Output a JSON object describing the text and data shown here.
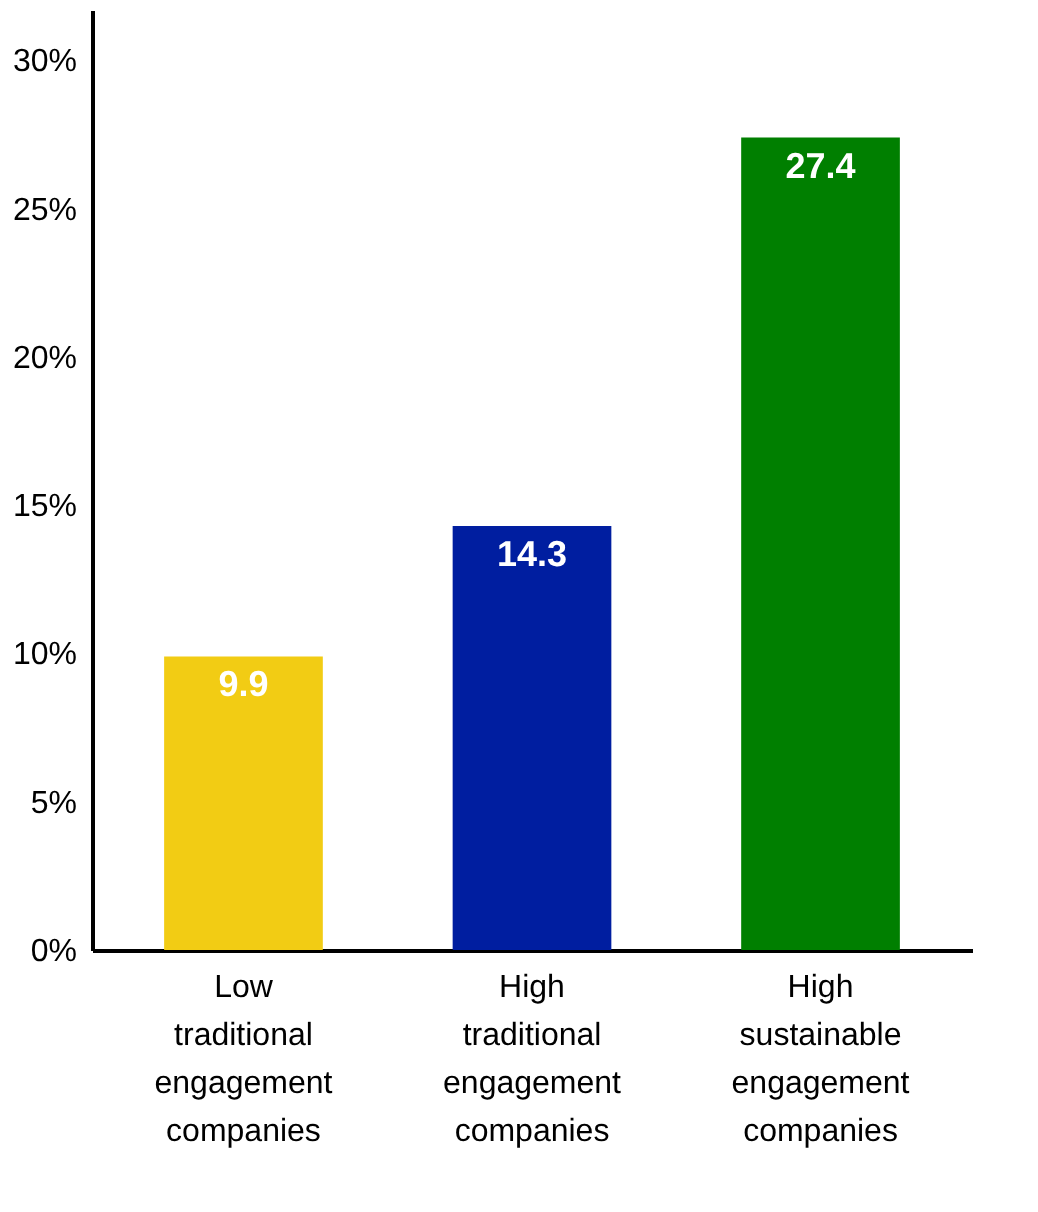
{
  "chart_data": {
    "type": "bar",
    "categories": [
      "Low traditional engagement companies",
      "High traditional engagement companies",
      "High sustainable engagement companies"
    ],
    "values": [
      9.9,
      14.3,
      27.4
    ],
    "colors": [
      "#f2cc14",
      "#001ea0",
      "#007f00"
    ],
    "data_labels": true,
    "ylim": [
      0,
      31.7
    ],
    "yticks": [
      {
        "value": 0,
        "label": "0%"
      },
      {
        "value": 5,
        "label": "5%"
      },
      {
        "value": 10,
        "label": "10%"
      },
      {
        "value": 15,
        "label": "15%"
      },
      {
        "value": 20,
        "label": "20%"
      },
      {
        "value": 25,
        "label": "25%"
      },
      {
        "value": 30,
        "label": "30%"
      }
    ],
    "grid": false
  }
}
